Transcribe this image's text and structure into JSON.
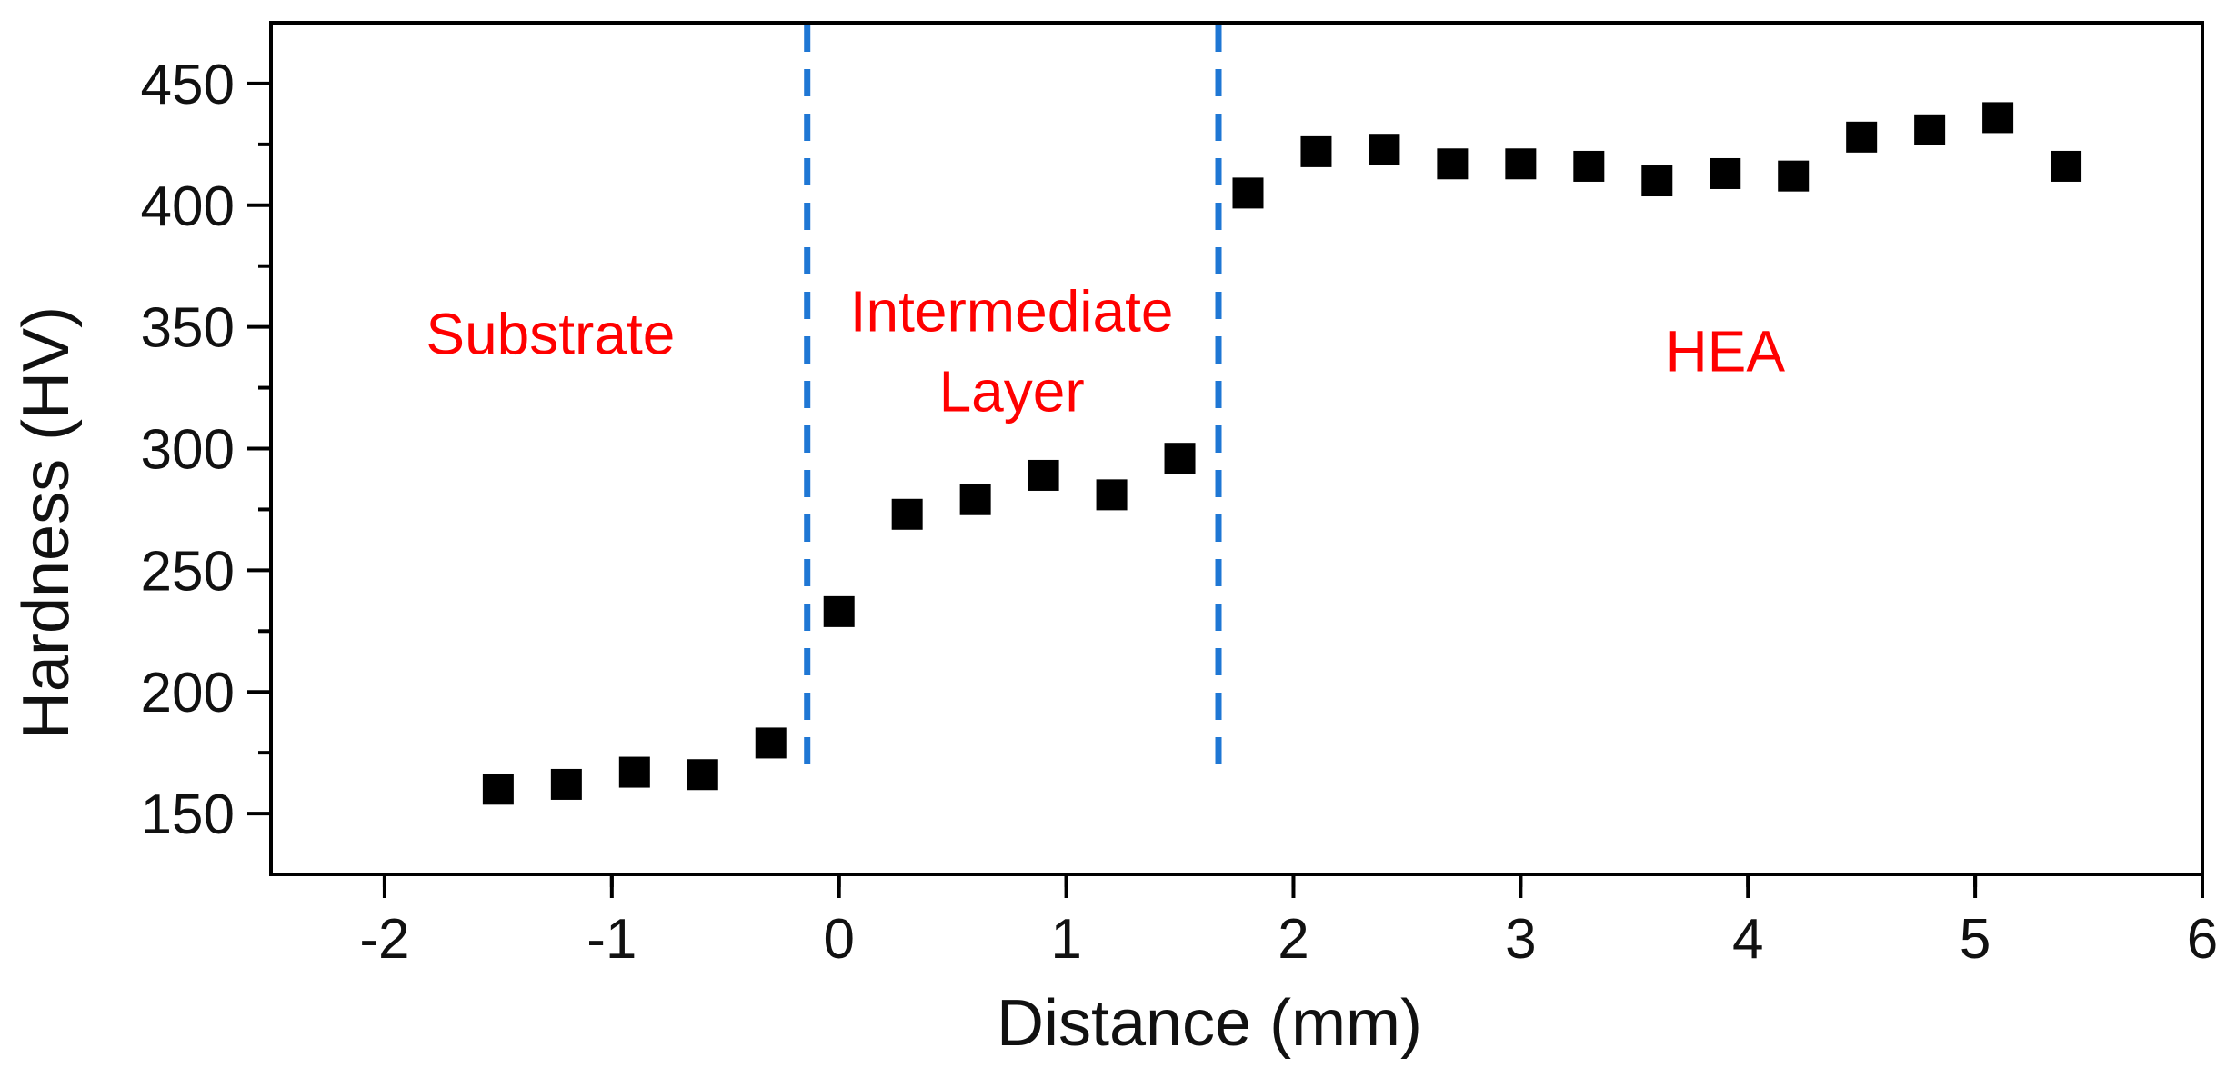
{
  "chart_data": {
    "type": "scatter",
    "title": "",
    "xlabel": "Distance (mm)",
    "ylabel": "Hardness (HV)",
    "xlim": [
      -2.5,
      6
    ],
    "ylim": [
      125,
      475
    ],
    "x_ticks": [
      -2,
      -1,
      0,
      1,
      2,
      3,
      4,
      5,
      6
    ],
    "y_ticks": [
      150,
      200,
      250,
      300,
      350,
      400,
      450
    ],
    "x_tick_labels": [
      "-2",
      "-1",
      "0",
      "1",
      "2",
      "3",
      "4",
      "5",
      "6"
    ],
    "y_tick_labels": [
      "150",
      "200",
      "250",
      "300",
      "350",
      "400",
      "450"
    ],
    "grid": false,
    "marker": "square",
    "marker_color": "#000000",
    "series": [
      {
        "name": "Hardness",
        "x": [
          -1.5,
          -1.2,
          -0.9,
          -0.6,
          -0.3,
          0.0,
          0.3,
          0.6,
          0.9,
          1.2,
          1.5,
          1.8,
          2.1,
          2.4,
          2.7,
          3.0,
          3.3,
          3.6,
          3.9,
          4.2,
          4.5,
          4.8,
          5.1,
          5.4
        ],
        "y": [
          160,
          162,
          167,
          166,
          179,
          233,
          273,
          279,
          289,
          281,
          296,
          405,
          422,
          423,
          417,
          417,
          416,
          410,
          413,
          412,
          428,
          431,
          436,
          416
        ]
      }
    ],
    "boundaries": [
      {
        "x": -0.14,
        "color": "#1f77d4",
        "style": "dashed",
        "y_from": 165,
        "y_to": 475
      },
      {
        "x": 1.67,
        "color": "#1f77d4",
        "style": "dashed",
        "y_from": 165,
        "y_to": 475
      }
    ],
    "annotations": [
      {
        "lines": [
          "Substrate"
        ],
        "x": -1.27,
        "y": 347,
        "color": "#ff0000"
      },
      {
        "lines": [
          "Intermediate",
          "Layer"
        ],
        "x": 0.76,
        "y": 340,
        "color": "#ff0000"
      },
      {
        "lines": [
          "HEA"
        ],
        "x": 3.9,
        "y": 340,
        "color": "#ff0000"
      }
    ]
  }
}
